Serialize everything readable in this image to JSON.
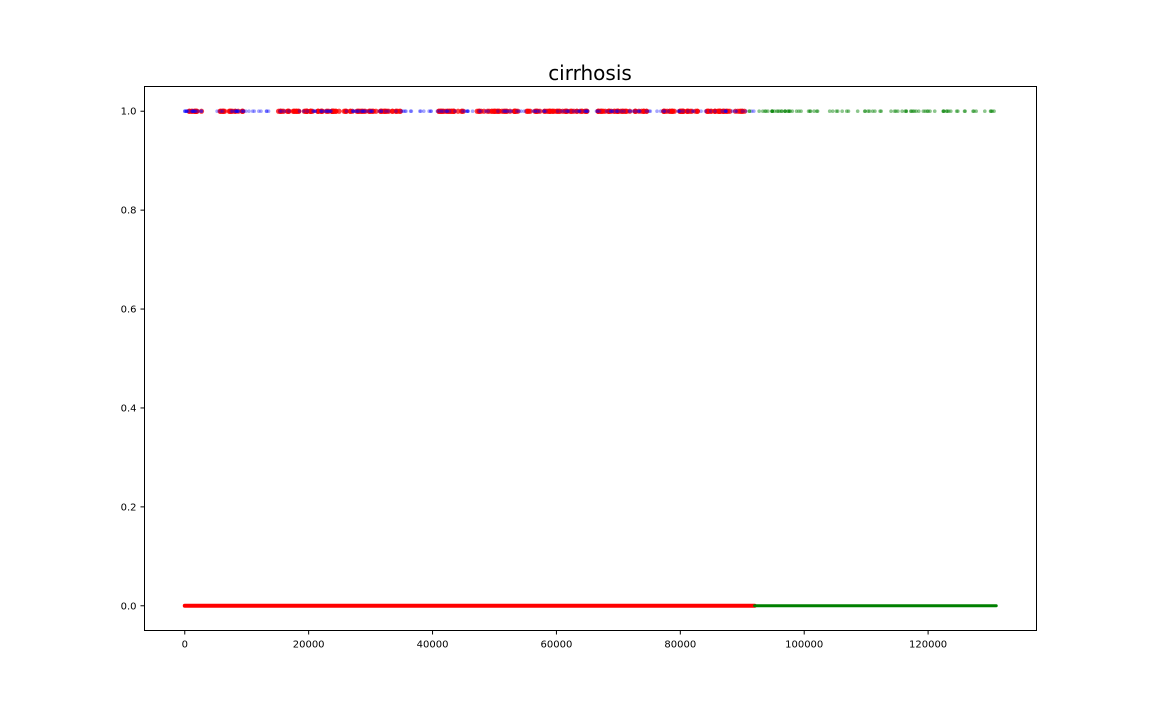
{
  "chart_data": {
    "type": "scatter",
    "title": "cirrhosis",
    "xlabel": "",
    "ylabel": "",
    "xlim": [
      -6500,
      137500
    ],
    "ylim": [
      -0.05,
      1.05
    ],
    "x_ticks": [
      0,
      20000,
      40000,
      60000,
      80000,
      100000,
      120000
    ],
    "x_tick_labels": [
      "0",
      "20000",
      "40000",
      "60000",
      "80000",
      "100000",
      "120000"
    ],
    "y_ticks": [
      0.0,
      0.2,
      0.4,
      0.6,
      0.8,
      1.0
    ],
    "y_tick_labels": [
      "0.0",
      "0.2",
      "0.4",
      "0.6",
      "0.8",
      "1.0"
    ],
    "grid": false,
    "legend": "none",
    "colors": {
      "red": "#ff0000",
      "blue": "#0000ff",
      "green": "#008000"
    },
    "series": [
      {
        "color": "red",
        "segments": [
          {
            "y": 0,
            "x_from": 0,
            "x_to": 92000,
            "density": "continuous"
          }
        ],
        "clusters": [
          {
            "y": 1,
            "x_from": 500,
            "x_to": 3000
          },
          {
            "y": 1,
            "x_from": 5500,
            "x_to": 9500
          },
          {
            "y": 1,
            "x_from": 15000,
            "x_to": 35000
          },
          {
            "y": 1,
            "x_from": 41000,
            "x_to": 46000
          },
          {
            "y": 1,
            "x_from": 47000,
            "x_to": 54000
          },
          {
            "y": 1,
            "x_from": 55000,
            "x_to": 65000
          },
          {
            "y": 1,
            "x_from": 66500,
            "x_to": 75000
          },
          {
            "y": 1,
            "x_from": 76500,
            "x_to": 83000
          },
          {
            "y": 1,
            "x_from": 84000,
            "x_to": 90500
          }
        ]
      },
      {
        "color": "blue",
        "segments": [
          {
            "y": 1,
            "x_from": 0,
            "x_to": 92000,
            "density": "sparse"
          }
        ]
      },
      {
        "color": "green",
        "segments": [
          {
            "y": 0,
            "x_from": 92000,
            "x_to": 131000,
            "density": "continuous"
          },
          {
            "y": 1,
            "x_from": 91000,
            "x_to": 131000,
            "density": "sparse"
          }
        ]
      }
    ]
  }
}
